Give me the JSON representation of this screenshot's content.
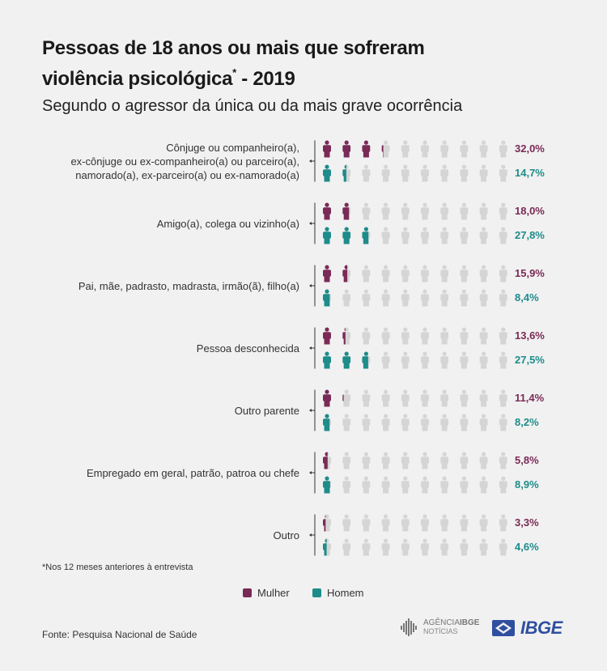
{
  "title_line1": "Pessoas de 18 anos ou mais que sofreram",
  "title_line2": "violência psicológica",
  "title_mark": "*",
  "title_year": " - 2019",
  "subtitle": "Segundo o agressor da única ou da mais grave ocorrência",
  "footnote": "*Nos 12 meses anteriores à entrevista",
  "source": "Fonte: Pesquisa Nacional de Saúde",
  "legend": {
    "mulher": "Mulher",
    "homem": "Homem"
  },
  "logos": {
    "agencia_line1": "AGÊNCIA",
    "agencia_bold": "IBGE",
    "agencia_line2": "NOTÍCIAS",
    "ibge": "IBGE"
  },
  "colors": {
    "mulher": "#7a2a56",
    "homem": "#1d8c8a",
    "empty": "#d5d5d5",
    "bracket": "#333333"
  },
  "icon_names": {
    "person": "person-icon",
    "ibge_logo": "ibge-logo-icon",
    "agencia_logo": "agencia-logo-icon"
  },
  "chart_data": {
    "type": "pictogram",
    "unit_per_icon_percent": 10,
    "icons_per_row": 10,
    "categories": [
      "Cônjuge ou companheiro(a), ex-cônjuge ou ex-companheiro(a) ou parceiro(a), namorado(a), ex-parceiro(a) ou ex-namorado(a)",
      "Amigo(a), colega ou vizinho(a)",
      "Pai, mãe, padrasto, madrasta, irmão(ã), filho(a)",
      "Pessoa desconhecida",
      "Outro parente",
      "Empregado em geral, patrão, patroa ou chefe",
      "Outro"
    ],
    "category_label_lines": [
      [
        "Cônjuge ou companheiro(a),",
        "ex-cônjuge ou ex-companheiro(a) ou parceiro(a),",
        "namorado(a), ex-parceiro(a) ou ex-namorado(a)"
      ],
      [
        "Amigo(a), colega ou vizinho(a)"
      ],
      [
        "Pai, mãe, padrasto, madrasta, irmão(ã), filho(a)"
      ],
      [
        "Pessoa desconhecida"
      ],
      [
        "Outro parente"
      ],
      [
        "Empregado em geral, patrão, patroa ou chefe"
      ],
      [
        "Outro"
      ]
    ],
    "series": [
      {
        "name": "Mulher",
        "values": [
          32.0,
          18.0,
          15.9,
          13.6,
          11.4,
          5.8,
          3.3
        ],
        "labels": [
          "32,0%",
          "18,0%",
          "15,9%",
          "13,6%",
          "11,4%",
          "5,8%",
          "3,3%"
        ]
      },
      {
        "name": "Homem",
        "values": [
          14.7,
          27.8,
          8.4,
          27.5,
          8.2,
          8.9,
          4.6
        ],
        "labels": [
          "14,7%",
          "27,8%",
          "8,4%",
          "27,5%",
          "8,2%",
          "8,9%",
          "4,6%"
        ]
      }
    ]
  }
}
